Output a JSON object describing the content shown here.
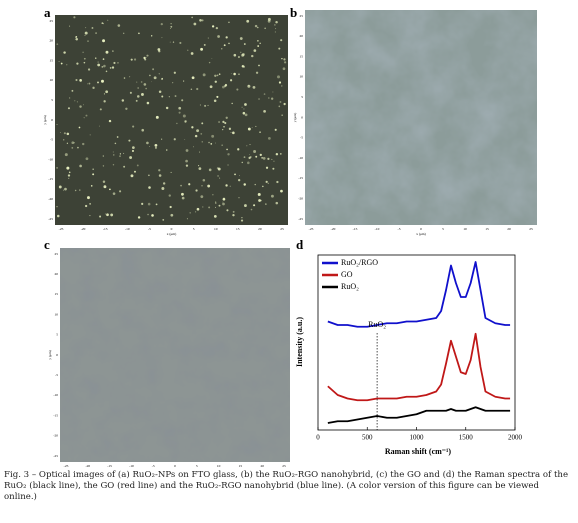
{
  "panels": {
    "a": "a",
    "b": "b",
    "c": "c",
    "d": "d"
  },
  "image_axes": {
    "ticks": [
      -25,
      -20,
      -15,
      -10,
      -5,
      0,
      5,
      10,
      15,
      20,
      25
    ],
    "x_label": "x (μm)",
    "y_label": "y (μm)"
  },
  "chart_data": {
    "type": "line",
    "x_label": "Raman shift (cm⁻¹)",
    "y_label": "Intensity (a.u.)",
    "x": [
      100,
      200,
      300,
      400,
      500,
      600,
      700,
      800,
      900,
      1000,
      1100,
      1200,
      1250,
      1300,
      1350,
      1400,
      1450,
      1500,
      1550,
      1600,
      1650,
      1700,
      1800,
      1900,
      1950
    ],
    "series": [
      {
        "name": "RuO₂/RGO",
        "color": "#1010cc",
        "values": [
          62,
          60,
          60,
          59,
          59,
          60,
          61,
          61,
          62,
          62,
          63,
          64,
          68,
          80,
          94,
          84,
          76,
          76,
          84,
          96,
          80,
          64,
          61,
          60,
          60
        ]
      },
      {
        "name": "GO",
        "color": "#c01818",
        "values": [
          25,
          20,
          18,
          17,
          17,
          18,
          18,
          18,
          19,
          19,
          20,
          22,
          26,
          38,
          51,
          42,
          33,
          32,
          40,
          55,
          36,
          22,
          19,
          18,
          18
        ]
      },
      {
        "name": "RuO₂",
        "color": "#000000",
        "values": [
          4,
          5,
          5,
          6,
          7,
          8,
          7,
          7,
          8,
          9,
          11,
          11,
          11,
          11,
          12,
          11,
          11,
          11,
          12,
          13,
          12,
          11,
          11,
          11,
          11
        ]
      }
    ],
    "xlim": [
      0,
      2000
    ],
    "xticks": [
      0,
      500,
      1000,
      1500,
      2000
    ],
    "ylim": [
      0,
      100
    ],
    "annotation": {
      "text": "RuO₂",
      "x": 600
    },
    "legend": "upper left"
  },
  "caption": "Fig. 3 – Optical images of (a) RuO₂-NPs on FTO glass, (b) the RuO₂-RGO nanohybrid, (c) the GO and (d) the Raman spectra of the RuO₂ (black line), the GO (red line) and the RuO₂-RGO nanohybrid (blue line). (A color version of this figure can be viewed online.)"
}
